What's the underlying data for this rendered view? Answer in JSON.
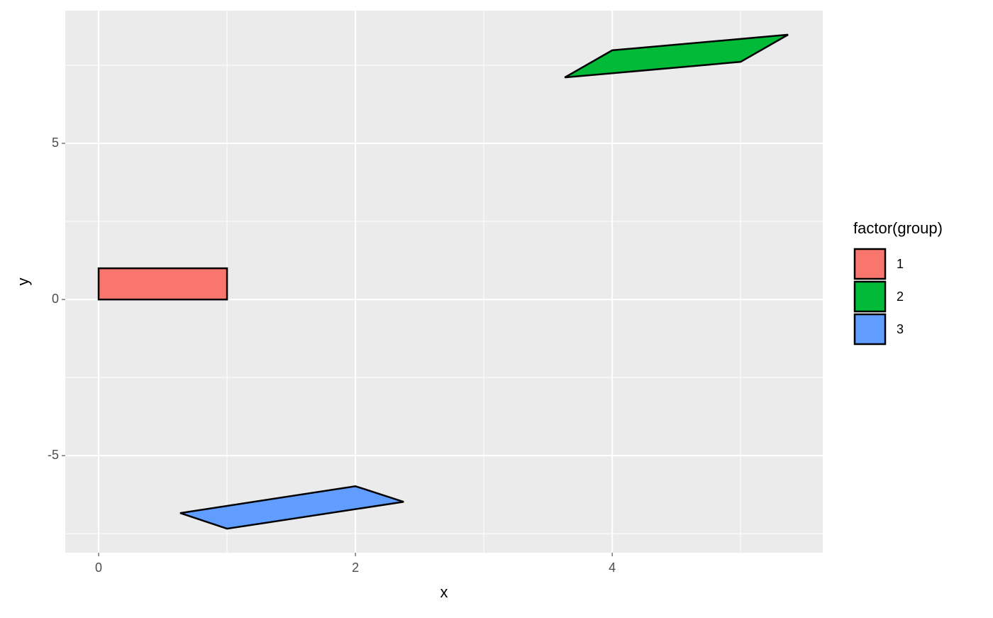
{
  "chart_data": {
    "type": "polygon",
    "x_label": "x",
    "y_label": "y",
    "legend_title": "factor(group)",
    "series": [
      {
        "name": "1",
        "color": "#F8766D",
        "x": [
          0,
          1,
          1,
          0
        ],
        "y": [
          0,
          0,
          1,
          1
        ]
      },
      {
        "name": "2",
        "color": "#00BA38",
        "x": [
          3.63,
          4,
          5.37,
          5
        ],
        "y": [
          7.11,
          7.98,
          8.48,
          7.61
        ]
      },
      {
        "name": "3",
        "color": "#619CFF",
        "x": [
          0.635,
          1,
          2.376,
          2
        ],
        "y": [
          -6.84,
          -7.34,
          -6.48,
          -5.98
        ]
      }
    ],
    "xlim": [
      -0.26,
      5.64
    ],
    "ylim": [
      -8.11,
      9.25
    ],
    "xticks": [
      0,
      2,
      4
    ],
    "yticks": [
      -5,
      0,
      5
    ],
    "xminor": [
      1,
      3,
      5
    ],
    "yminor": [
      -7.5,
      -2.5,
      2.5,
      7.5
    ],
    "grid": true,
    "legend": "right"
  }
}
